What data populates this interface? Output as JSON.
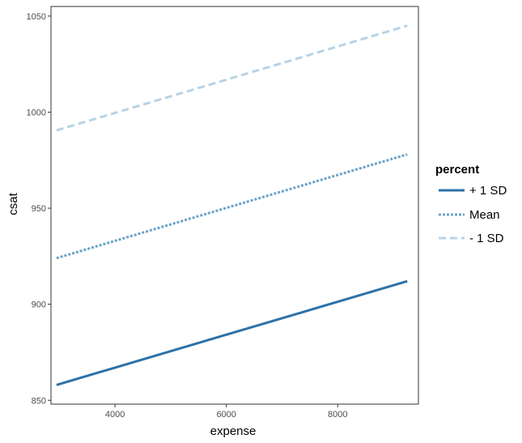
{
  "chart_data": {
    "type": "line",
    "xlabel": "expense",
    "ylabel": "csat",
    "xlim": [
      2850,
      9450
    ],
    "ylim": [
      848,
      1055
    ],
    "xticks": [
      4000,
      6000,
      8000
    ],
    "yticks": [
      850,
      900,
      950,
      1000,
      1050
    ],
    "xtick_labels": [
      "4000",
      "6000",
      "8000"
    ],
    "ytick_labels": [
      "850",
      "900",
      "950",
      "1000",
      "1050"
    ],
    "grid": false,
    "legend": {
      "title": "percent",
      "position": "right"
    },
    "series": [
      {
        "name": "+ 1 SD",
        "color": "#2c72a8",
        "dash": "solid",
        "x": [
          2950,
          9250
        ],
        "y": [
          858,
          912
        ]
      },
      {
        "name": "Mean",
        "color": "#6aa2c8",
        "dash": "dotted",
        "x": [
          2950,
          9250
        ],
        "y": [
          924,
          978
        ]
      },
      {
        "name": "- 1 SD",
        "color": "#b7d3e6",
        "dash": "dashed",
        "x": [
          2950,
          9250
        ],
        "y": [
          990.5,
          1045
        ]
      }
    ]
  }
}
